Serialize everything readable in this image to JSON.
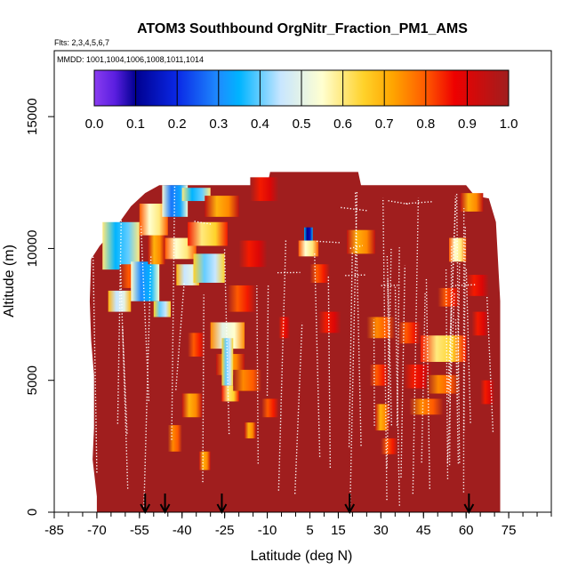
{
  "chart_data": {
    "type": "heatmap",
    "title": "ATOM3 Southbound OrgNitr_Fraction_PM1_AMS",
    "subtitle_flights": "Flts: 2,3,4,5,6,7",
    "subtitle_dates": "MMDD: 1001,1004,1006,1008,1011,1014",
    "xlabel": "Latitude (deg N)",
    "ylabel": "Altitude (m)",
    "xlim": [
      -85,
      90
    ],
    "ylim": [
      0,
      17500
    ],
    "x_ticks": [
      -85,
      -70,
      -55,
      -40,
      -25,
      -10,
      5,
      15,
      30,
      45,
      60,
      75
    ],
    "x_tick_labels": [
      "-85",
      "-70",
      "-55",
      "-40",
      "-25",
      "-10",
      "5",
      "15",
      "30",
      "45",
      "60",
      "75"
    ],
    "x_minor_step": 5,
    "y_ticks": [
      0,
      5000,
      10000,
      15000
    ],
    "y_tick_labels": [
      "0",
      "5000",
      "10000",
      "15000"
    ],
    "colorbar": {
      "range": [
        0,
        1
      ],
      "labels": [
        "0.0",
        "0.1",
        "0.2",
        "0.3",
        "0.4",
        "0.5",
        "0.6",
        "0.7",
        "0.8",
        "0.9",
        "1.0"
      ],
      "stops": [
        {
          "v": 0.0,
          "color": "#8a3df0"
        },
        {
          "v": 0.05,
          "color": "#5a1ee0"
        },
        {
          "v": 0.1,
          "color": "#000090"
        },
        {
          "v": 0.2,
          "color": "#0a28e6"
        },
        {
          "v": 0.3,
          "color": "#1e8cff"
        },
        {
          "v": 0.35,
          "color": "#00b4ff"
        },
        {
          "v": 0.45,
          "color": "#c8e6ff"
        },
        {
          "v": 0.55,
          "color": "#ffffd0"
        },
        {
          "v": 0.65,
          "color": "#ffd22a"
        },
        {
          "v": 0.72,
          "color": "#ffa500"
        },
        {
          "v": 0.8,
          "color": "#ff5a00"
        },
        {
          "v": 0.87,
          "color": "#ee0000"
        },
        {
          "v": 1.0,
          "color": "#a01e1e"
        }
      ]
    },
    "background_value": 1.0,
    "coverage_edges_lat": [
      [
        -70,
        -71.5
      ],
      [
        70.5,
        72
      ]
    ],
    "coverage_top_alt": 12900,
    "flight_marker_lats": [
      -53,
      -46,
      -26,
      19,
      61
    ],
    "patches": [
      {
        "lat": [
          -68,
          -55
        ],
        "alt": [
          9200,
          11000
        ],
        "v": 0.35
      },
      {
        "lat": [
          -66,
          -58
        ],
        "alt": [
          7600,
          8400
        ],
        "v": 0.45
      },
      {
        "lat": [
          -62,
          -53
        ],
        "alt": [
          8500,
          9400
        ],
        "v": 0.8
      },
      {
        "lat": [
          -58,
          -48
        ],
        "alt": [
          8000,
          9500
        ],
        "v": 0.3
      },
      {
        "lat": [
          -52,
          -46
        ],
        "alt": [
          9400,
          10800
        ],
        "v": 0.7
      },
      {
        "lat": [
          -55,
          -45
        ],
        "alt": [
          10500,
          11700
        ],
        "v": 0.55
      },
      {
        "lat": [
          -50,
          -44
        ],
        "alt": [
          7400,
          8000
        ],
        "v": 0.4
      },
      {
        "lat": [
          -47,
          -38
        ],
        "alt": [
          11200,
          12400
        ],
        "v": 0.28
      },
      {
        "lat": [
          -46,
          -35
        ],
        "alt": [
          9600,
          10400
        ],
        "v": 0.55
      },
      {
        "lat": [
          -42,
          -34
        ],
        "alt": [
          8600,
          9400
        ],
        "v": 0.45
      },
      {
        "lat": [
          -40,
          -30
        ],
        "alt": [
          11800,
          12300
        ],
        "v": 0.35
      },
      {
        "lat": [
          -38,
          -24
        ],
        "alt": [
          10100,
          11000
        ],
        "v": 0.6
      },
      {
        "lat": [
          -36,
          -25
        ],
        "alt": [
          8700,
          9800
        ],
        "v": 0.4
      },
      {
        "lat": [
          -32,
          -20
        ],
        "alt": [
          11200,
          12000
        ],
        "v": 0.7
      },
      {
        "lat": [
          -30,
          -18
        ],
        "alt": [
          6200,
          7200
        ],
        "v": 0.5
      },
      {
        "lat": [
          -28,
          -18
        ],
        "alt": [
          5200,
          6000
        ],
        "v": 0.7
      },
      {
        "lat": [
          -26,
          -22
        ],
        "alt": [
          4800,
          6600
        ],
        "v": 0.4
      },
      {
        "lat": [
          -26,
          -20
        ],
        "alt": [
          4200,
          4800
        ],
        "v": 0.6
      },
      {
        "lat": [
          -24,
          -14
        ],
        "alt": [
          7600,
          8600
        ],
        "v": 0.8
      },
      {
        "lat": [
          -22,
          -12
        ],
        "alt": [
          4600,
          5400
        ],
        "v": 0.75
      },
      {
        "lat": [
          -20,
          -10
        ],
        "alt": [
          9300,
          10300
        ],
        "v": 0.85
      },
      {
        "lat": [
          -16,
          -6
        ],
        "alt": [
          11800,
          12700
        ],
        "v": 0.85
      },
      {
        "lat": [
          -45,
          -40
        ],
        "alt": [
          2300,
          3300
        ],
        "v": 0.75
      },
      {
        "lat": [
          -40,
          -33
        ],
        "alt": [
          3600,
          4500
        ],
        "v": 0.7
      },
      {
        "lat": [
          -38,
          -32
        ],
        "alt": [
          5900,
          6800
        ],
        "v": 0.8
      },
      {
        "lat": [
          -34,
          -30
        ],
        "alt": [
          1600,
          2300
        ],
        "v": 0.7
      },
      {
        "lat": [
          -18,
          -14
        ],
        "alt": [
          2800,
          3400
        ],
        "v": 0.7
      },
      {
        "lat": [
          -12,
          -6
        ],
        "alt": [
          3600,
          4300
        ],
        "v": 0.8
      },
      {
        "lat": [
          -6,
          -2
        ],
        "alt": [
          6600,
          7400
        ],
        "v": 0.85
      },
      {
        "lat": [
          3,
          6
        ],
        "alt": [
          10000,
          10800
        ],
        "v": 0.1
      },
      {
        "lat": [
          1,
          8
        ],
        "alt": [
          9700,
          10300
        ],
        "v": 0.55
      },
      {
        "lat": [
          5,
          12
        ],
        "alt": [
          8700,
          9400
        ],
        "v": 0.8
      },
      {
        "lat": [
          8,
          16
        ],
        "alt": [
          6800,
          7600
        ],
        "v": 0.85
      },
      {
        "lat": [
          18,
          28
        ],
        "alt": [
          9800,
          10700
        ],
        "v": 0.7
      },
      {
        "lat": [
          25,
          35
        ],
        "alt": [
          6600,
          7400
        ],
        "v": 0.75
      },
      {
        "lat": [
          26,
          33
        ],
        "alt": [
          4800,
          5600
        ],
        "v": 0.8
      },
      {
        "lat": [
          28,
          33
        ],
        "alt": [
          3100,
          4100
        ],
        "v": 0.7
      },
      {
        "lat": [
          30,
          36
        ],
        "alt": [
          2200,
          2800
        ],
        "v": 0.8
      },
      {
        "lat": [
          36,
          44
        ],
        "alt": [
          6400,
          7200
        ],
        "v": 0.8
      },
      {
        "lat": [
          38,
          48
        ],
        "alt": [
          4700,
          5600
        ],
        "v": 0.85
      },
      {
        "lat": [
          40,
          52
        ],
        "alt": [
          3700,
          4300
        ],
        "v": 0.75
      },
      {
        "lat": [
          44,
          60
        ],
        "alt": [
          5700,
          6700
        ],
        "v": 0.6
      },
      {
        "lat": [
          46,
          58
        ],
        "alt": [
          4500,
          5200
        ],
        "v": 0.75
      },
      {
        "lat": [
          50,
          58
        ],
        "alt": [
          7800,
          8500
        ],
        "v": 0.8
      },
      {
        "lat": [
          54,
          60
        ],
        "alt": [
          9500,
          10400
        ],
        "v": 0.55
      },
      {
        "lat": [
          58,
          66
        ],
        "alt": [
          11400,
          12100
        ],
        "v": 0.7
      },
      {
        "lat": [
          60,
          68
        ],
        "alt": [
          8200,
          9000
        ],
        "v": 0.85
      },
      {
        "lat": [
          62,
          68
        ],
        "alt": [
          6700,
          7600
        ],
        "v": 0.85
      },
      {
        "lat": [
          65,
          70
        ],
        "alt": [
          4100,
          5000
        ],
        "v": 0.85
      }
    ]
  }
}
